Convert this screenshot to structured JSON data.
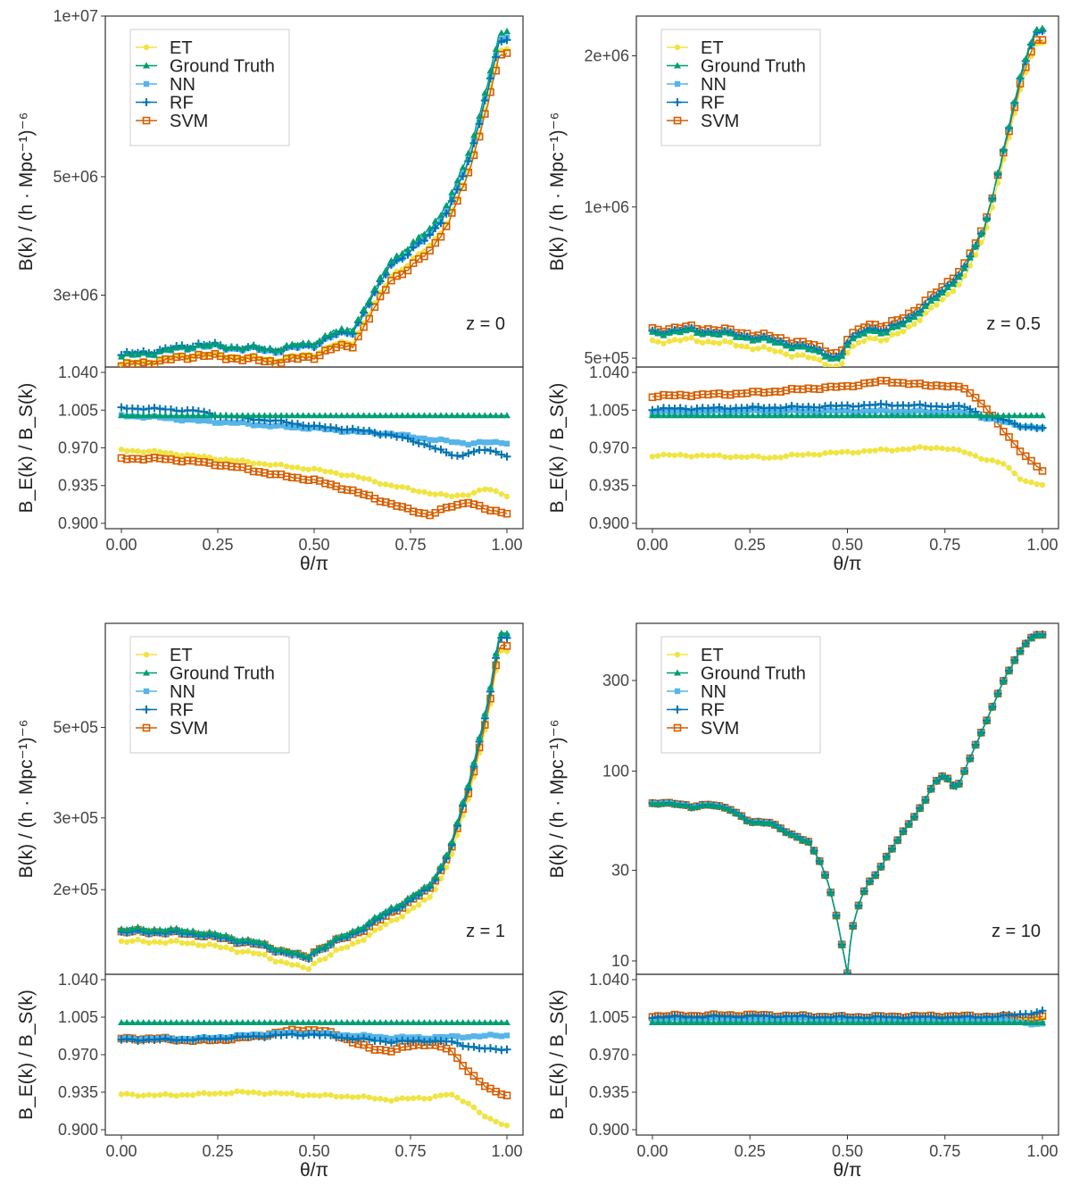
{
  "legend_labels": [
    "ET",
    "Ground Truth",
    "NN",
    "RF",
    "SVM"
  ],
  "series_colors": {
    "ET": "#f0e442",
    "Ground Truth": "#009e73",
    "NN": "#56b4e9",
    "RF": "#0072b2",
    "SVM": "#d55e00"
  },
  "labels": {
    "x_axis": "θ/π",
    "y_top_axis": "B(k) / (h · Mpc⁻¹)⁻⁶",
    "y_bottom_axis": "B_E(k) / B_S(k)"
  },
  "chart_data": [
    {
      "type": "line",
      "annotation": "z = 0",
      "ylim": [
        2200000,
        10000000
      ],
      "yticks": [
        3000000,
        5000000,
        10000000
      ],
      "ytick_labels": [
        "3e+06",
        "5e+06",
        "1e+07"
      ],
      "y_scale": "log",
      "x": [
        0.0,
        0.1,
        0.2,
        0.3,
        0.4,
        0.5,
        0.55,
        0.6,
        0.65,
        0.7,
        0.75,
        0.8,
        0.85,
        0.9,
        0.95,
        0.98,
        1.0
      ],
      "ground_truth": [
        2300000,
        2350000,
        2420000,
        2400000,
        2380000,
        2450000,
        2550000,
        2600000,
        3000000,
        3500000,
        3700000,
        4000000,
        4500000,
        5500000,
        7500000,
        9200000,
        9300000
      ],
      "ratio_xlim": [
        0,
        1
      ],
      "ratio_ylim": [
        0.895,
        1.045
      ],
      "ratio_yticks": [
        0.9,
        0.935,
        0.97,
        1.005,
        1.04
      ],
      "ratio_ytick_labels": [
        "0.900",
        "0.935",
        "0.970",
        "1.005",
        "1.040"
      ],
      "xticks": [
        0,
        0.25,
        0.5,
        0.75,
        1.0
      ],
      "xtick_labels": [
        "0.00",
        "0.25",
        "0.50",
        "0.75",
        "1.00"
      ],
      "ratios": {
        "ET": {
          "x": [
            0,
            0.1,
            0.2,
            0.3,
            0.4,
            0.5,
            0.6,
            0.7,
            0.8,
            0.85,
            0.9,
            0.95,
            1.0
          ],
          "y": [
            0.968,
            0.966,
            0.962,
            0.958,
            0.954,
            0.95,
            0.944,
            0.935,
            0.928,
            0.925,
            0.927,
            0.932,
            0.926
          ]
        },
        "NN": {
          "x": [
            0,
            0.1,
            0.2,
            0.3,
            0.4,
            0.5,
            0.6,
            0.7,
            0.8,
            0.9,
            0.95,
            1.0
          ],
          "y": [
            1.0,
            0.998,
            0.995,
            0.993,
            0.99,
            0.988,
            0.985,
            0.983,
            0.978,
            0.974,
            0.975,
            0.975
          ]
        },
        "RF": {
          "x": [
            0,
            0.1,
            0.2,
            0.25,
            0.3,
            0.4,
            0.5,
            0.6,
            0.7,
            0.8,
            0.85,
            0.88,
            0.9,
            0.95,
            1.0
          ],
          "y": [
            1.007,
            1.006,
            1.004,
            1.0,
            0.998,
            0.995,
            0.99,
            0.987,
            0.982,
            0.972,
            0.964,
            0.962,
            0.966,
            0.968,
            0.963
          ]
        },
        "SVM": {
          "x": [
            0,
            0.1,
            0.2,
            0.3,
            0.4,
            0.5,
            0.6,
            0.7,
            0.75,
            0.8,
            0.85,
            0.9,
            0.95,
            1.0
          ],
          "y": [
            0.96,
            0.96,
            0.957,
            0.952,
            0.945,
            0.94,
            0.93,
            0.918,
            0.912,
            0.908,
            0.915,
            0.92,
            0.912,
            0.91
          ]
        },
        "Ground Truth": {
          "x": [
            0,
            1.0
          ],
          "y": [
            1.0,
            1.0
          ]
        }
      },
      "offsets": {
        "ET": 0.968,
        "NN": 0.99,
        "RF": 1.0,
        "SVM": 0.955
      }
    },
    {
      "type": "line",
      "annotation": "z = 0.5",
      "ylim": [
        480000,
        2400000
      ],
      "yticks": [
        500000,
        1000000,
        2000000
      ],
      "ytick_labels": [
        "5e+05",
        "1e+06",
        "2e+06"
      ],
      "y_scale": "log",
      "x": [
        0.0,
        0.1,
        0.2,
        0.3,
        0.4,
        0.45,
        0.48,
        0.5,
        0.55,
        0.6,
        0.65,
        0.7,
        0.75,
        0.8,
        0.85,
        0.9,
        0.95,
        0.98,
        1.0
      ],
      "ground_truth": [
        560000,
        565000,
        555000,
        540000,
        520000,
        505000,
        495000,
        530000,
        570000,
        560000,
        590000,
        630000,
        680000,
        750000,
        900000,
        1300000,
        1900000,
        2250000,
        2280000
      ],
      "ratio_xlim": [
        0,
        1
      ],
      "ratio_ylim": [
        0.895,
        1.045
      ],
      "ratio_yticks": [
        0.9,
        0.935,
        0.97,
        1.005,
        1.04
      ],
      "ratio_ytick_labels": [
        "0.900",
        "0.935",
        "0.970",
        "1.005",
        "1.040"
      ],
      "xticks": [
        0,
        0.25,
        0.5,
        0.75,
        1.0
      ],
      "xtick_labels": [
        "0.00",
        "0.25",
        "0.50",
        "0.75",
        "1.00"
      ],
      "ratios": {
        "ET": {
          "x": [
            0,
            0.1,
            0.2,
            0.3,
            0.4,
            0.5,
            0.6,
            0.7,
            0.75,
            0.8,
            0.85,
            0.9,
            0.95,
            1.0
          ],
          "y": [
            0.963,
            0.963,
            0.962,
            0.961,
            0.964,
            0.966,
            0.968,
            0.97,
            0.97,
            0.966,
            0.96,
            0.955,
            0.94,
            0.935
          ]
        },
        "NN": {
          "x": [
            0,
            0.2,
            0.4,
            0.6,
            0.8,
            0.85,
            0.9,
            0.95,
            1.0
          ],
          "y": [
            1.003,
            1.004,
            1.004,
            1.004,
            1.003,
            0.998,
            0.994,
            0.99,
            0.988
          ]
        },
        "RF": {
          "x": [
            0,
            0.2,
            0.4,
            0.6,
            0.7,
            0.8,
            0.85,
            0.9,
            0.95,
            1.0
          ],
          "y": [
            1.006,
            1.007,
            1.008,
            1.01,
            1.009,
            1.008,
            1.0,
            0.996,
            0.99,
            0.988
          ]
        },
        "SVM": {
          "x": [
            0,
            0.1,
            0.2,
            0.3,
            0.4,
            0.5,
            0.55,
            0.6,
            0.65,
            0.7,
            0.75,
            0.8,
            0.85,
            0.9,
            0.95,
            1.0
          ],
          "y": [
            1.018,
            1.019,
            1.02,
            1.022,
            1.025,
            1.027,
            1.03,
            1.032,
            1.03,
            1.028,
            1.028,
            1.025,
            1.01,
            0.985,
            0.965,
            0.948
          ]
        },
        "Ground Truth": {
          "x": [
            0,
            1.0
          ],
          "y": [
            1.0,
            1.0
          ]
        }
      },
      "offsets": {
        "ET": 0.963,
        "NN": 1.003,
        "RF": 1.007,
        "SVM": 1.018
      }
    },
    {
      "type": "line",
      "annotation": "z = 1",
      "ylim": [
        124000,
        900000
      ],
      "yticks": [
        200000,
        300000,
        500000
      ],
      "ytick_labels": [
        "2e+05",
        "3e+05",
        "5e+05"
      ],
      "y_scale": "log",
      "x": [
        0.0,
        0.1,
        0.2,
        0.3,
        0.35,
        0.4,
        0.45,
        0.48,
        0.5,
        0.55,
        0.6,
        0.65,
        0.7,
        0.75,
        0.8,
        0.85,
        0.9,
        0.95,
        0.98,
        1.0
      ],
      "ground_truth": [
        160000,
        160000,
        158000,
        152000,
        149000,
        144000,
        140000,
        136000,
        142000,
        150000,
        158000,
        168000,
        180000,
        192000,
        205000,
        250000,
        360000,
        580000,
        840000,
        850000
      ],
      "ratio_xlim": [
        0,
        1
      ],
      "ratio_ylim": [
        0.895,
        1.045
      ],
      "ratio_yticks": [
        0.9,
        0.935,
        0.97,
        1.005,
        1.04
      ],
      "ratio_ytick_labels": [
        "0.900",
        "0.935",
        "0.970",
        "1.005",
        "1.040"
      ],
      "xticks": [
        0,
        0.25,
        0.5,
        0.75,
        1.0
      ],
      "xtick_labels": [
        "0.00",
        "0.25",
        "0.50",
        "0.75",
        "1.00"
      ],
      "ratios": {
        "ET": {
          "x": [
            0,
            0.1,
            0.2,
            0.3,
            0.4,
            0.5,
            0.6,
            0.7,
            0.8,
            0.85,
            0.9,
            0.95,
            1.0
          ],
          "y": [
            0.933,
            0.932,
            0.933,
            0.935,
            0.934,
            0.932,
            0.931,
            0.928,
            0.93,
            0.933,
            0.925,
            0.91,
            0.904
          ]
        },
        "NN": {
          "x": [
            0,
            0.2,
            0.4,
            0.5,
            0.6,
            0.7,
            0.8,
            0.9,
            1.0
          ],
          "y": [
            0.985,
            0.985,
            0.99,
            0.99,
            0.988,
            0.986,
            0.986,
            0.987,
            0.988
          ]
        },
        "RF": {
          "x": [
            0,
            0.2,
            0.4,
            0.5,
            0.6,
            0.7,
            0.8,
            0.85,
            0.9,
            0.95,
            1.0
          ],
          "y": [
            0.984,
            0.984,
            0.988,
            0.989,
            0.985,
            0.982,
            0.983,
            0.982,
            0.978,
            0.975,
            0.975
          ]
        },
        "SVM": {
          "x": [
            0,
            0.1,
            0.2,
            0.3,
            0.4,
            0.45,
            0.5,
            0.55,
            0.6,
            0.65,
            0.7,
            0.75,
            0.8,
            0.85,
            0.9,
            0.95,
            1.0
          ],
          "y": [
            0.985,
            0.985,
            0.983,
            0.985,
            0.99,
            0.993,
            0.993,
            0.99,
            0.982,
            0.975,
            0.974,
            0.978,
            0.98,
            0.975,
            0.955,
            0.938,
            0.932
          ]
        },
        "Ground Truth": {
          "x": [
            0,
            1.0
          ],
          "y": [
            1.0,
            1.0
          ]
        }
      },
      "offsets": {
        "ET": 0.933,
        "NN": 0.985,
        "RF": 0.984,
        "SVM": 0.985
      }
    },
    {
      "type": "line",
      "annotation": "z = 10",
      "ylim": [
        8.5,
        600
      ],
      "yticks": [
        10,
        30,
        100,
        300
      ],
      "ytick_labels": [
        "10",
        "30",
        "100",
        "300"
      ],
      "y_scale": "log",
      "x": [
        0.0,
        0.05,
        0.1,
        0.15,
        0.2,
        0.25,
        0.3,
        0.35,
        0.4,
        0.43,
        0.45,
        0.47,
        0.49,
        0.5,
        0.51,
        0.53,
        0.55,
        0.58,
        0.6,
        0.65,
        0.7,
        0.72,
        0.75,
        0.78,
        0.8,
        0.85,
        0.9,
        0.95,
        0.98,
        1.0
      ],
      "ground_truth": [
        67,
        68,
        64,
        67,
        62,
        54,
        53,
        47,
        42,
        33,
        26,
        18,
        11,
        8.5,
        14,
        20,
        25,
        30,
        35,
        50,
        70,
        85,
        95,
        80,
        100,
        170,
        300,
        450,
        520,
        525
      ],
      "ratio_xlim": [
        0,
        1
      ],
      "ratio_ylim": [
        0.895,
        1.045
      ],
      "ratio_yticks": [
        0.9,
        0.935,
        0.97,
        1.005,
        1.04
      ],
      "ratio_ytick_labels": [
        "0.900",
        "0.935",
        "0.970",
        "1.005",
        "1.040"
      ],
      "xticks": [
        0,
        0.25,
        0.5,
        0.75,
        1.0
      ],
      "xtick_labels": [
        "0.00",
        "0.25",
        "0.50",
        "0.75",
        "1.00"
      ],
      "ratios": {
        "ET": {
          "x": [
            0,
            0.5,
            1.0
          ],
          "y": [
            1.004,
            1.004,
            1.003
          ]
        },
        "NN": {
          "x": [
            0,
            0.5,
            0.9,
            1.0
          ],
          "y": [
            1.003,
            1.003,
            1.002,
            0.998
          ]
        },
        "RF": {
          "x": [
            0,
            0.3,
            0.5,
            0.8,
            0.9,
            0.95,
            1.0
          ],
          "y": [
            1.005,
            1.006,
            1.005,
            1.005,
            1.006,
            1.008,
            1.01
          ]
        },
        "SVM": {
          "x": [
            0,
            0.25,
            0.5,
            0.75,
            1.0
          ],
          "y": [
            1.006,
            1.007,
            1.005,
            1.006,
            1.005
          ]
        },
        "Ground Truth": {
          "x": [
            0,
            1.0
          ],
          "y": [
            1.0,
            1.0
          ]
        }
      },
      "offsets": {
        "ET": 1.0,
        "NN": 1.0,
        "RF": 1.0,
        "SVM": 1.0
      }
    }
  ]
}
